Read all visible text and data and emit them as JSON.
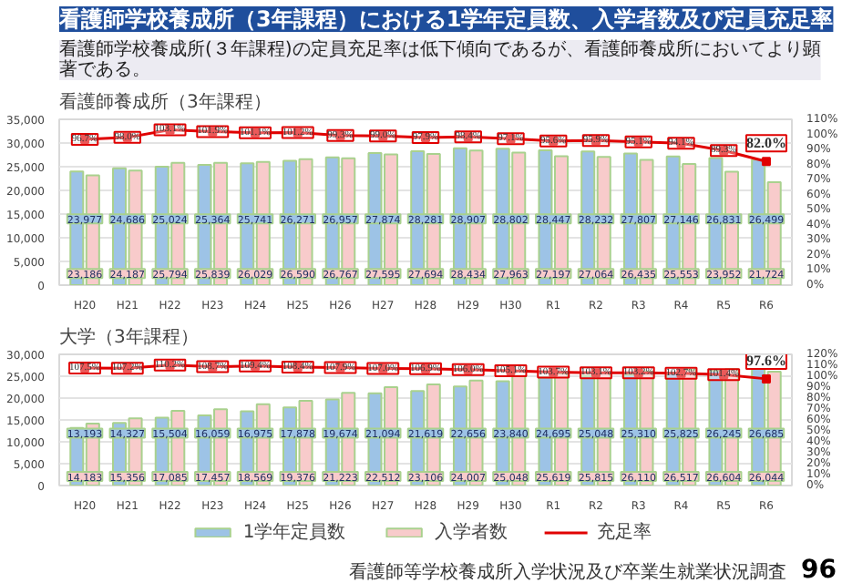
{
  "chart_data": [
    {
      "type": "bar",
      "title": "看護師養成所（3年課程）",
      "annotations": [
        "看護師学校養成所（3年課程）における1学年定員数、入学者数及び定員充足率",
        "看護師学校養成所(３年課程)の定員充足率は低下傾向であるが、看護師養成所においてより顕著である。"
      ],
      "categories": [
        "H20",
        "H21",
        "H22",
        "H23",
        "H24",
        "H25",
        "H26",
        "H27",
        "H28",
        "H29",
        "H30",
        "R1",
        "R2",
        "R3",
        "R4",
        "R5",
        "R6"
      ],
      "series": [
        {
          "color": "#9dc3e6",
          "values": [
            23977,
            24686,
            25024,
            25364,
            25741,
            26271,
            26957,
            27874,
            28281,
            28907,
            28802,
            28447,
            28232,
            27807,
            27146,
            26831,
            26499
          ],
          "value_labels": [
            "23,977",
            "24,686",
            "25,024",
            "25,364",
            "25,741",
            "26,271",
            "26,957",
            "27,874",
            "28,281",
            "28,907",
            "28,802",
            "28,447",
            "28,232",
            "27,807",
            "27,146",
            "26,831",
            "26,499"
          ]
        },
        {
          "color": "#f8cbcb",
          "values": [
            23186,
            24187,
            25794,
            25839,
            26029,
            26590,
            26767,
            27595,
            27694,
            28434,
            27963,
            27197,
            27064,
            26435,
            25553,
            23952,
            21724
          ],
          "value_labels": [
            "23,186",
            "24,187",
            "25,794",
            "25,839",
            "26,029",
            "26,590",
            "26,767",
            "27,595",
            "27,694",
            "28,434",
            "27,963",
            "27,197",
            "27,064",
            "26,435",
            "25,553",
            "23,952",
            "21,724"
          ]
        },
        {
          "type": "line",
          "axis": "y2",
          "color": "#e00000",
          "marker": "square",
          "values": [
            96.7,
            98.0,
            103.1,
            101.9,
            101.1,
            101.2,
            99.3,
            99.0,
            97.9,
            98.4,
            97.1,
            95.6,
            95.9,
            95.1,
            94.1,
            89.3,
            82.0
          ],
          "value_labels": [
            "96.7%",
            "98.0%",
            "103.1%",
            "101.9%",
            "101.1%",
            "101.2%",
            "99.3%",
            "99.0%",
            "97.9%",
            "98.4%",
            "97.1%",
            "95.6%",
            "95.9%",
            "95.1%",
            "94.1%",
            "89.3%",
            "82.0%"
          ]
        }
      ],
      "ylim": [
        0,
        35000
      ],
      "yticks": [
        0,
        {
          "value": 5000,
          "label": "5,000"
        },
        {
          "value": 10000,
          "label": "10,000"
        },
        {
          "value": 15000,
          "label": "15,000"
        },
        {
          "value": 20000,
          "label": "20,000"
        },
        {
          "value": 25000,
          "label": "25,000"
        },
        {
          "value": 30000,
          "label": "30,000"
        },
        {
          "value": 35000,
          "label": "35,000"
        }
      ],
      "y2lim": [
        0,
        110
      ],
      "y2ticks": [
        {
          "value": 0,
          "label": "0%"
        },
        {
          "value": 10,
          "label": "10%"
        },
        {
          "value": 20,
          "label": "20%"
        },
        {
          "value": 30,
          "label": "30%"
        },
        {
          "value": 40,
          "label": "40%"
        },
        {
          "value": 50,
          "label": "50%"
        },
        {
          "value": 60,
          "label": "60%"
        },
        {
          "value": 70,
          "label": "70%"
        },
        {
          "value": 80,
          "label": "80%"
        },
        {
          "value": 90,
          "label": "90%"
        },
        {
          "value": 100,
          "label": "100%"
        },
        {
          "value": 110,
          "label": "110%"
        }
      ],
      "grid": "y"
    },
    {
      "type": "bar",
      "title": "大学（3年課程）",
      "annotations": [
        "看護師等学校養成所入学状況及び卒業生就業状況調査",
        "96"
      ],
      "categories": [
        "H20",
        "H21",
        "H22",
        "H23",
        "H24",
        "H25",
        "H26",
        "H27",
        "H28",
        "H29",
        "H30",
        "R1",
        "R2",
        "R3",
        "R4",
        "R5",
        "R6"
      ],
      "series": [
        {
          "name": "1学年定員数",
          "color": "#9dc3e6",
          "values": [
            13193,
            14327,
            15504,
            16059,
            16975,
            17878,
            19674,
            21094,
            21619,
            22656,
            23840,
            24695,
            25048,
            25310,
            25825,
            26245,
            26685
          ],
          "value_labels": [
            "13,193",
            "14,327",
            "15,504",
            "16,059",
            "16,975",
            "17,878",
            "19,674",
            "21,094",
            "21,619",
            "22,656",
            "23,840",
            "24,695",
            "25,048",
            "25,310",
            "25,825",
            "26,245",
            "26,685"
          ]
        },
        {
          "name": "入学者数",
          "color": "#f8cbcb",
          "values": [
            14183,
            15356,
            17085,
            17457,
            18569,
            19376,
            21223,
            22512,
            23106,
            24007,
            25048,
            25619,
            25815,
            26110,
            26517,
            26604,
            26044
          ],
          "value_labels": [
            "14,183",
            "15,356",
            "17,085",
            "17,457",
            "18,569",
            "19,376",
            "21,223",
            "22,512",
            "23,106",
            "24,007",
            "25,048",
            "25,619",
            "25,815",
            "26,110",
            "26,517",
            "26,604",
            "26,044"
          ]
        },
        {
          "name": "充足率",
          "type": "line",
          "axis": "y2",
          "color": "#e00000",
          "marker": "square",
          "values": [
            107.5,
            107.2,
            110.2,
            108.7,
            109.4,
            108.4,
            107.9,
            107.0,
            106.9,
            106.0,
            105.1,
            103.7,
            103.1,
            103.2,
            102.7,
            101.4,
            97.6
          ],
          "value_labels": [
            "107.5%",
            "107.2%",
            "110.2%",
            "108.7%",
            "109.4%",
            "108.4%",
            "107.9%",
            "107.0%",
            "106.9%",
            "106.0%",
            "105.1%",
            "103.7%",
            "103.1%",
            "103.2%",
            "102.7%",
            "101.4%",
            "97.6%"
          ]
        }
      ],
      "ylim": [
        0,
        30000
      ],
      "yticks": [
        0,
        {
          "value": 5000,
          "label": "5,000"
        },
        {
          "value": 10000,
          "label": "10,000"
        },
        {
          "value": 15000,
          "label": "15,000"
        },
        {
          "value": 20000,
          "label": "20,000"
        },
        {
          "value": 25000,
          "label": "25,000"
        },
        {
          "value": 30000,
          "label": "30,000"
        }
      ],
      "y2lim": [
        0,
        120
      ],
      "y2ticks": [
        {
          "value": 0,
          "label": "0%"
        },
        {
          "value": 10,
          "label": "10%"
        },
        {
          "value": 20,
          "label": "20%"
        },
        {
          "value": 30,
          "label": "30%"
        },
        {
          "value": 40,
          "label": "40%"
        },
        {
          "value": 50,
          "label": "50%"
        },
        {
          "value": 60,
          "label": "60%"
        },
        {
          "value": 70,
          "label": "70%"
        },
        {
          "value": 80,
          "label": "80%"
        },
        {
          "value": 90,
          "label": "90%"
        },
        {
          "value": 100,
          "label": "100%"
        },
        {
          "value": 110,
          "label": "110%"
        },
        {
          "value": 120,
          "label": "120%"
        }
      ],
      "grid": "y",
      "legend": "bottom"
    }
  ]
}
